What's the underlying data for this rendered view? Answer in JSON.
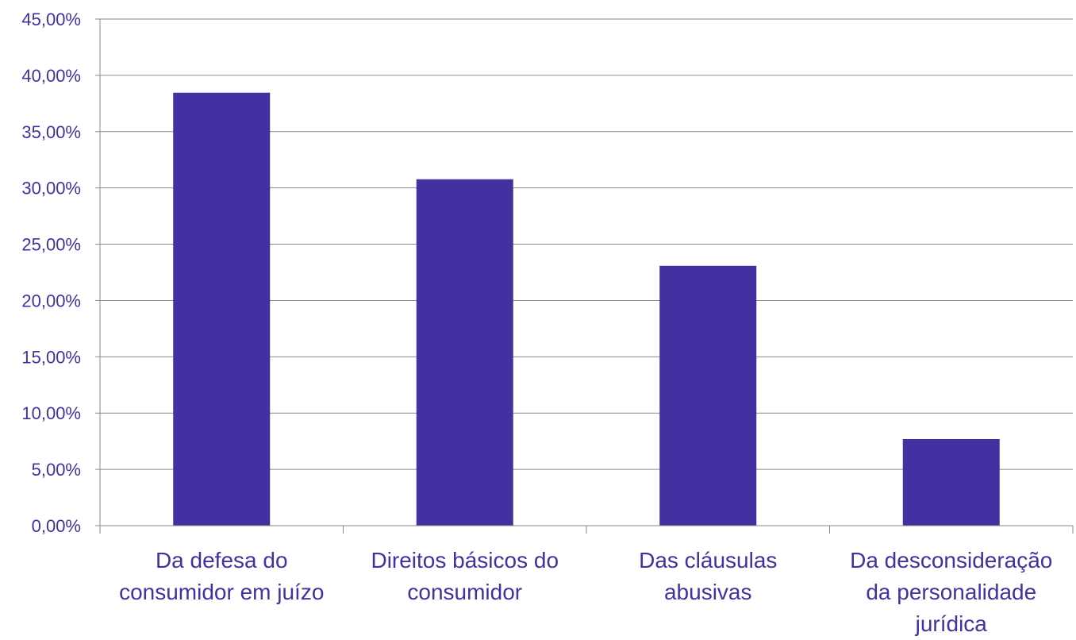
{
  "colors": {
    "bar": "#4231A0",
    "text": "#4231A0",
    "grid": "#8A8A8A",
    "axis": "#8A8A8A"
  },
  "chart_data": {
    "type": "bar",
    "title": "",
    "xlabel": "",
    "ylabel": "",
    "grid": true,
    "legend": "none",
    "ylim": [
      0,
      0.45
    ],
    "y_ticks": [
      0,
      0.05,
      0.1,
      0.15,
      0.2,
      0.25,
      0.3,
      0.35,
      0.4,
      0.45
    ],
    "y_tick_labels": [
      "0,00%",
      "5,00%",
      "10,00%",
      "15,00%",
      "20,00%",
      "25,00%",
      "30,00%",
      "35,00%",
      "40,00%",
      "45,00%"
    ],
    "categories": [
      [
        "Da defesa do",
        "consumidor em juízo"
      ],
      [
        "Direitos básicos do",
        "consumidor"
      ],
      [
        "Das cláusulas",
        "abusivas"
      ],
      [
        "Da desconsideração",
        "da personalidade",
        "jurídica"
      ]
    ],
    "values": [
      0.3846,
      0.3077,
      0.2308,
      0.0769
    ]
  }
}
